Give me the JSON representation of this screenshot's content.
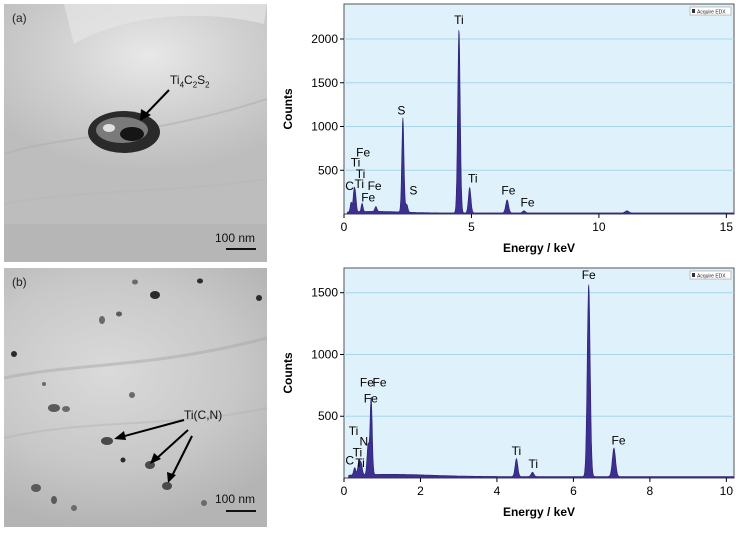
{
  "panels": {
    "a": {
      "label": "(a)",
      "phase_label_main": "Ti",
      "phase_label_sub": [
        "4",
        "2",
        "2"
      ],
      "phase_label_parts": [
        "C",
        "S"
      ],
      "scale_text": "100 nm"
    },
    "b": {
      "label": "(b)",
      "phase_label": "Ti(C,N)",
      "scale_text": "100 nm"
    }
  },
  "chart_data": [
    {
      "type": "line",
      "xlabel": "Energy / keV",
      "ylabel": "Counts",
      "legend": "Acquire EDX",
      "legend_position": "top-right",
      "xlim": [
        0,
        15.3
      ],
      "ylim": [
        0,
        2400
      ],
      "xticks": [
        0,
        5,
        10,
        15
      ],
      "yticks": [
        500,
        1000,
        1500,
        2000
      ],
      "grid": true,
      "peaks": [
        {
          "x": 0.28,
          "y": 110,
          "w": 0.05
        },
        {
          "x": 0.39,
          "y": 220,
          "w": 0.05
        },
        {
          "x": 0.45,
          "y": 180,
          "w": 0.05
        },
        {
          "x": 0.71,
          "y": 95,
          "w": 0.05
        },
        {
          "x": 1.25,
          "y": 55,
          "w": 0.06
        },
        {
          "x": 2.31,
          "y": 1080,
          "w": 0.06
        },
        {
          "x": 2.46,
          "y": 90,
          "w": 0.06
        },
        {
          "x": 4.51,
          "y": 2100,
          "w": 0.07
        },
        {
          "x": 4.93,
          "y": 290,
          "w": 0.07
        },
        {
          "x": 6.4,
          "y": 150,
          "w": 0.08
        },
        {
          "x": 7.06,
          "y": 25,
          "w": 0.08
        },
        {
          "x": 11.1,
          "y": 25,
          "w": 0.1
        }
      ],
      "annotations": [
        {
          "text": "Fe",
          "x": 0.75,
          "y": 660
        },
        {
          "text": "Ti",
          "x": 0.45,
          "y": 545
        },
        {
          "text": "Ti",
          "x": 0.65,
          "y": 410
        },
        {
          "text": "C",
          "x": 0.22,
          "y": 275
        },
        {
          "text": "Ti",
          "x": 0.6,
          "y": 300
        },
        {
          "text": "Fe",
          "x": 1.2,
          "y": 275
        },
        {
          "text": "Fe",
          "x": 0.95,
          "y": 145
        },
        {
          "text": "S",
          "x": 2.25,
          "y": 1140
        },
        {
          "text": "S",
          "x": 2.72,
          "y": 225
        },
        {
          "text": "Ti",
          "x": 4.51,
          "y": 2170
        },
        {
          "text": "Ti",
          "x": 5.05,
          "y": 360
        },
        {
          "text": "Fe",
          "x": 6.45,
          "y": 225
        },
        {
          "text": "Fe",
          "x": 7.2,
          "y": 85
        }
      ]
    },
    {
      "type": "line",
      "xlabel": "Energy / keV",
      "ylabel": "Counts",
      "legend": "Acquire EDX",
      "legend_position": "top-right",
      "xlim": [
        0,
        10.2
      ],
      "ylim": [
        0,
        1700
      ],
      "xticks": [
        0,
        2,
        4,
        6,
        8,
        10
      ],
      "yticks": [
        500,
        1000,
        1500
      ],
      "grid": true,
      "peaks": [
        {
          "x": 0.28,
          "y": 60,
          "w": 0.04
        },
        {
          "x": 0.39,
          "y": 110,
          "w": 0.04
        },
        {
          "x": 0.45,
          "y": 90,
          "w": 0.04
        },
        {
          "x": 0.63,
          "y": 240,
          "w": 0.04
        },
        {
          "x": 0.71,
          "y": 630,
          "w": 0.04
        },
        {
          "x": 4.51,
          "y": 145,
          "w": 0.05
        },
        {
          "x": 4.93,
          "y": 35,
          "w": 0.05
        },
        {
          "x": 6.4,
          "y": 1560,
          "w": 0.055
        },
        {
          "x": 7.06,
          "y": 230,
          "w": 0.06
        }
      ],
      "annotations": [
        {
          "text": "Fe",
          "x": 0.6,
          "y": 740
        },
        {
          "text": "Fe",
          "x": 0.93,
          "y": 740
        },
        {
          "text": "Fe",
          "x": 0.7,
          "y": 610
        },
        {
          "text": "Ti",
          "x": 0.25,
          "y": 350
        },
        {
          "text": "N",
          "x": 0.52,
          "y": 265
        },
        {
          "text": "Ti",
          "x": 0.35,
          "y": 175
        },
        {
          "text": "C",
          "x": 0.15,
          "y": 110
        },
        {
          "text": "Ti",
          "x": 0.42,
          "y": 90
        },
        {
          "text": "Ti",
          "x": 4.51,
          "y": 185
        },
        {
          "text": "Ti",
          "x": 4.95,
          "y": 80
        },
        {
          "text": "Fe",
          "x": 6.4,
          "y": 1610
        },
        {
          "text": "Fe",
          "x": 7.18,
          "y": 270
        }
      ]
    }
  ]
}
